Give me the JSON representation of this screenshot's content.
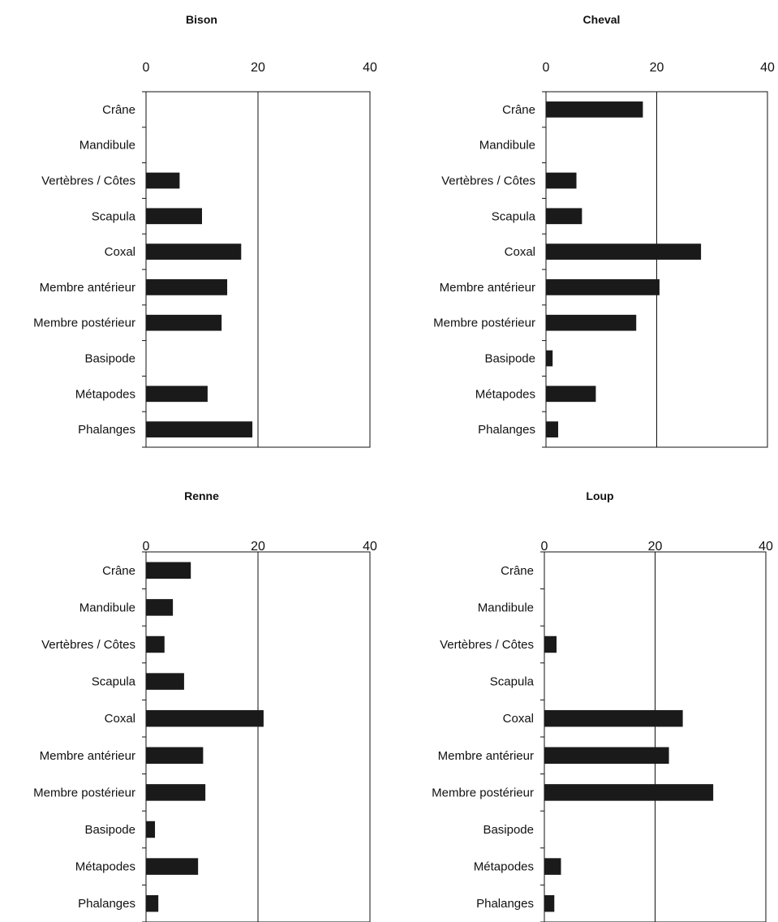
{
  "colors": {
    "bar": "#1a1a1a",
    "axis": "#111111",
    "background": "#ffffff"
  },
  "chart_data": [
    {
      "type": "bar",
      "orientation": "horizontal",
      "title": "Bison",
      "xlabel": "",
      "ylabel": "",
      "xlim": [
        0,
        40
      ],
      "x_ticks": [
        "0",
        "20",
        "40"
      ],
      "grid": "vertical line at 20",
      "categories": [
        "Crâne",
        "Mandibule",
        "Vertèbres / Côtes",
        "Scapula",
        "Coxal",
        "Membre antérieur",
        "Membre postérieur",
        "Basipode",
        "Métapodes",
        "Phalanges"
      ],
      "values": [
        0,
        0,
        6,
        10,
        17,
        14.5,
        13.5,
        0,
        11,
        19
      ]
    },
    {
      "type": "bar",
      "orientation": "horizontal",
      "title": "Cheval",
      "xlabel": "",
      "ylabel": "",
      "xlim": [
        0,
        40
      ],
      "x_ticks": [
        "0",
        "20",
        "40"
      ],
      "grid": "vertical line at 20",
      "categories": [
        "Crâne",
        "Mandibule",
        "Vertèbres / Côtes",
        "Scapula",
        "Coxal",
        "Membre antérieur",
        "Membre postérieur",
        "Basipode",
        "Métapodes",
        "Phalanges"
      ],
      "values": [
        17.5,
        0,
        5.5,
        6.5,
        28,
        20.5,
        16.3,
        1.2,
        9,
        2.2
      ]
    },
    {
      "type": "bar",
      "orientation": "horizontal",
      "title": "Renne",
      "xlabel": "",
      "ylabel": "",
      "xlim": [
        0,
        40
      ],
      "x_ticks": [
        "0",
        "20",
        "40"
      ],
      "grid": "vertical line at 20",
      "categories": [
        "Crâne",
        "Mandibule",
        "Vertèbres / Côtes",
        "Scapula",
        "Coxal",
        "Membre antérieur",
        "Membre postérieur",
        "Basipode",
        "Métapodes",
        "Phalanges"
      ],
      "values": [
        8,
        4.8,
        3.3,
        6.8,
        21,
        10.2,
        10.6,
        1.6,
        9.3,
        2.2
      ]
    },
    {
      "type": "bar",
      "orientation": "horizontal",
      "title": "Loup",
      "xlabel": "",
      "ylabel": "",
      "xlim": [
        0,
        40
      ],
      "x_ticks": [
        "0",
        "20",
        "40"
      ],
      "grid": "vertical line at 20",
      "categories": [
        "Crâne",
        "Mandibule",
        "Vertèbres / Côtes",
        "Scapula",
        "Coxal",
        "Membre antérieur",
        "Membre postérieur",
        "Basipode",
        "Métapodes",
        "Phalanges"
      ],
      "values": [
        0,
        0,
        2.2,
        0,
        25,
        22.5,
        30.5,
        0,
        3,
        1.8
      ]
    }
  ]
}
